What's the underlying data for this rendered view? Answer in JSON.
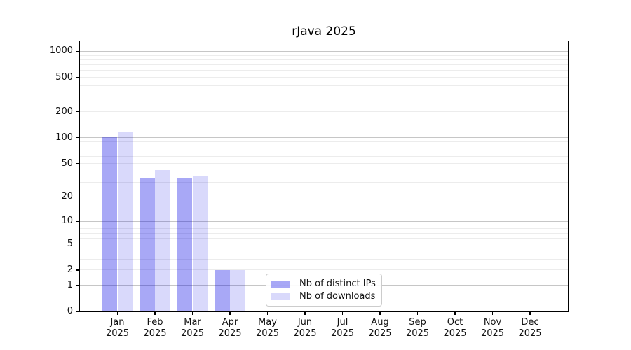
{
  "title": "rJava 2025",
  "figure_background": "#ffffff",
  "chart_data": {
    "type": "bar",
    "title": "rJava 2025",
    "xlabel": "",
    "ylabel": "",
    "yscale": "log10(1+x)",
    "ylim": [
      0,
      1300
    ],
    "grid": "on (major and minor horizontal lines)",
    "categories_months": [
      "Jan",
      "Feb",
      "Mar",
      "Apr",
      "May",
      "Jun",
      "Jul",
      "Aug",
      "Sep",
      "Oct",
      "Nov",
      "Dec"
    ],
    "year_label": "2025",
    "series": [
      {
        "name": "Nb of distinct IPs",
        "color": "rgba(0,0,230,0.34)",
        "values": [
          104,
          34,
          34,
          2,
          0,
          0,
          0,
          0,
          0,
          0,
          0,
          0
        ]
      },
      {
        "name": "Nb of downloads",
        "color": "rgba(0,0,230,0.15)",
        "values": [
          115,
          42,
          36,
          2,
          0,
          0,
          0,
          0,
          0,
          0,
          0,
          0
        ]
      }
    ],
    "yticks": [
      0,
      1,
      2,
      5,
      10,
      20,
      50,
      100,
      200,
      500,
      1000
    ],
    "ytick_labels": [
      "0",
      "1",
      "2",
      "5",
      "10",
      "20",
      "50",
      "100",
      "200",
      "500",
      "1000"
    ],
    "major_gridlines": [
      1,
      10,
      100,
      1000
    ],
    "minor_gridlines": [
      2,
      3,
      4,
      5,
      6,
      7,
      8,
      9,
      20,
      30,
      40,
      50,
      60,
      70,
      80,
      90,
      200,
      300,
      400,
      500,
      600,
      700,
      800,
      900
    ],
    "legend": {
      "position": "lower-center",
      "entries": [
        "Nb of distinct IPs",
        "Nb of downloads"
      ]
    },
    "colors": {
      "axis": "#000000",
      "major_grid": "#c6c6c6",
      "minor_grid": "#ececec",
      "text": "#111111"
    }
  }
}
